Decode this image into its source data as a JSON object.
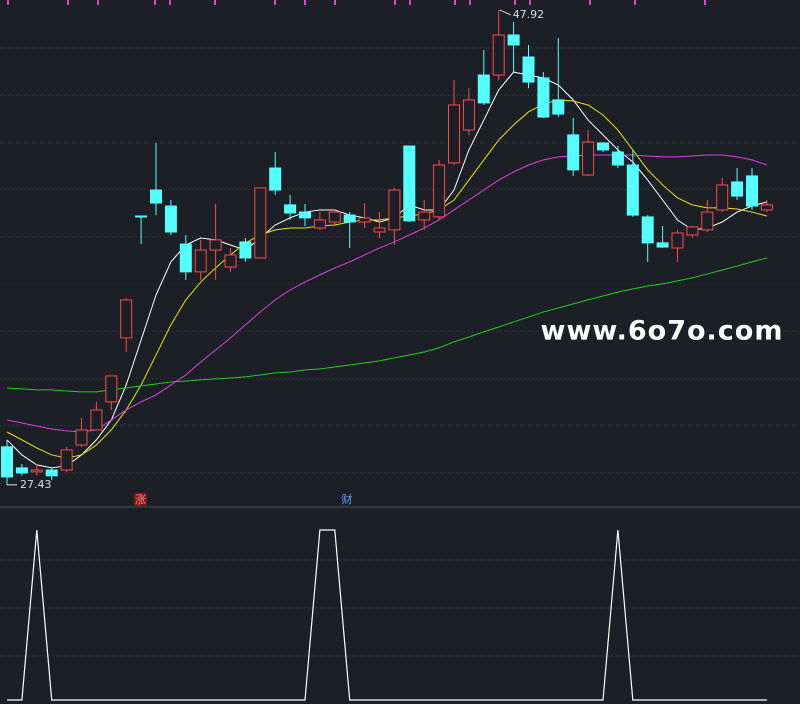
{
  "chart_data": [
    {
      "type": "candlestick",
      "up_color": "#ff4a4a",
      "down_color": "#54ffff",
      "ylim": [
        26.56,
        48.35
      ],
      "grid": true,
      "high_label": 47.92,
      "low_label": 27.43,
      "annotations": [
        "涨",
        "财"
      ],
      "watermark": "www.6o7o.com",
      "ohlc": {
        "open": [
          29.07,
          28.16,
          27.99,
          28.07,
          28.07,
          29.15,
          29.8,
          31.01,
          33.77,
          39.03,
          40.15,
          39.46,
          37.82,
          36.62,
          37.56,
          36.83,
          37.91,
          37.22,
          41.1,
          39.51,
          39.2,
          38.51,
          38.77,
          39.07,
          38.77,
          38.34,
          38.43,
          42.05,
          38.86,
          38.99,
          41.32,
          42.74,
          45.11,
          45.11,
          46.84,
          45.89,
          44.99,
          44.04,
          42.53,
          40.8,
          42.18,
          41.79,
          41.23,
          38.99,
          37.87,
          37.65,
          38.21,
          38.43,
          39.29,
          40.5,
          40.76,
          39.29
        ],
        "high": [
          29.37,
          28.33,
          28.33,
          28.16,
          29.07,
          30.32,
          31.01,
          32.13,
          35.49,
          39.03,
          42.18,
          39.72,
          38.21,
          38.0,
          39.55,
          37.65,
          38.08,
          40.24,
          41.79,
          39.94,
          39.55,
          39.2,
          39.29,
          39.2,
          39.59,
          39.2,
          40.24,
          42.05,
          39.72,
          41.45,
          44.9,
          44.55,
          46.19,
          47.92,
          47.4,
          46.41,
          45.24,
          46.71,
          43.26,
          42.74,
          42.22,
          42.05,
          41.88,
          39.07,
          38.6,
          38.43,
          38.6,
          39.72,
          40.67,
          41.1,
          41.1,
          39.72
        ],
        "low": [
          27.43,
          27.82,
          27.82,
          27.64,
          27.99,
          29.07,
          29.8,
          30.66,
          33.16,
          37.82,
          39.07,
          38.21,
          36.27,
          36.27,
          36.27,
          36.62,
          37.05,
          37.22,
          39.94,
          38.86,
          38.6,
          38.43,
          38.6,
          37.65,
          38.51,
          38.08,
          37.78,
          38.77,
          38.43,
          38.86,
          41.23,
          42.53,
          43.82,
          44.9,
          45.24,
          44.55,
          43.26,
          43.3,
          40.76,
          40.76,
          41.79,
          41.1,
          38.99,
          37.05,
          37.65,
          37.05,
          38.08,
          38.34,
          39.2,
          39.72,
          39.29,
          39.2
        ],
        "close": [
          27.77,
          27.94,
          28.07,
          27.82,
          28.94,
          29.8,
          30.66,
          32.13,
          35.41,
          39.03,
          39.59,
          38.34,
          36.62,
          37.56,
          38.0,
          37.35,
          37.22,
          40.24,
          40.15,
          39.16,
          38.95,
          38.86,
          39.2,
          38.77,
          38.95,
          38.51,
          40.15,
          38.82,
          39.2,
          41.23,
          43.82,
          44.04,
          43.91,
          46.84,
          46.41,
          44.81,
          43.3,
          43.43,
          41.02,
          42.22,
          41.88,
          41.23,
          39.07,
          37.87,
          37.69,
          38.3,
          38.56,
          39.2,
          40.37,
          39.89,
          39.46,
          39.51
        ]
      },
      "series": [
        {
          "color": "#ffffff",
          "values": [
            29.37,
            28.72,
            28.29,
            28.16,
            28.25,
            28.72,
            29.37,
            30.23,
            31.74,
            33.68,
            35.62,
            37.05,
            37.78,
            38.08,
            38.0,
            37.78,
            37.56,
            38.08,
            38.64,
            38.95,
            39.2,
            39.29,
            39.29,
            39.07,
            38.95,
            38.77,
            38.95,
            39.51,
            39.29,
            39.29,
            40.15,
            41.88,
            43.17,
            44.47,
            45.24,
            45.11,
            44.99,
            44.68,
            44.04,
            43.17,
            42.53,
            41.88,
            41.36,
            40.58,
            39.72,
            38.86,
            38.43,
            38.51,
            38.77,
            39.2,
            39.46,
            39.64
          ]
        },
        {
          "color": "#e6e600",
          "values": [
            29.71,
            29.37,
            29.02,
            28.72,
            28.59,
            28.72,
            29.15,
            29.8,
            30.66,
            31.74,
            33.03,
            34.33,
            35.41,
            36.18,
            36.79,
            37.35,
            37.87,
            38.21,
            38.43,
            38.51,
            38.51,
            38.6,
            38.64,
            38.77,
            38.86,
            38.86,
            38.95,
            39.03,
            39.12,
            39.29,
            39.72,
            40.58,
            41.45,
            42.31,
            42.96,
            43.52,
            43.86,
            44.04,
            43.99,
            43.82,
            43.39,
            42.74,
            41.88,
            41.02,
            40.37,
            39.81,
            39.51,
            39.38,
            39.38,
            39.33,
            39.2,
            39.03
          ]
        },
        {
          "color": "#e040e0",
          "values": [
            30.23,
            30.1,
            29.97,
            29.84,
            29.76,
            29.71,
            29.8,
            30.23,
            30.66,
            31.01,
            31.31,
            31.74,
            32.17,
            32.73,
            33.25,
            33.77,
            34.33,
            34.89,
            35.41,
            35.84,
            36.18,
            36.49,
            36.79,
            37.05,
            37.35,
            37.65,
            37.91,
            38.21,
            38.51,
            38.86,
            39.29,
            39.72,
            40.15,
            40.58,
            40.93,
            41.23,
            41.45,
            41.58,
            41.62,
            41.66,
            41.66,
            41.66,
            41.66,
            41.62,
            41.58,
            41.58,
            41.62,
            41.66,
            41.66,
            41.58,
            41.45,
            41.23
          ]
        },
        {
          "color": "#22cc22",
          "values": [
            31.61,
            31.57,
            31.53,
            31.53,
            31.48,
            31.44,
            31.44,
            31.53,
            31.61,
            31.7,
            31.78,
            31.87,
            31.91,
            31.96,
            32.0,
            32.04,
            32.09,
            32.17,
            32.26,
            32.3,
            32.39,
            32.43,
            32.52,
            32.6,
            32.69,
            32.78,
            32.91,
            33.03,
            33.16,
            33.34,
            33.6,
            33.81,
            34.03,
            34.24,
            34.46,
            34.67,
            34.89,
            35.06,
            35.24,
            35.41,
            35.58,
            35.75,
            35.88,
            36.01,
            36.1,
            36.23,
            36.36,
            36.53,
            36.7,
            36.87,
            37.05,
            37.22
          ]
        }
      ]
    },
    {
      "type": "line",
      "color": "#ffffff",
      "ylim": [
        0,
        1
      ],
      "values": [
        0,
        0,
        1,
        0,
        0,
        0,
        0,
        0,
        0,
        0,
        0,
        0,
        0,
        0,
        0,
        0,
        0,
        0,
        0,
        0,
        0,
        1,
        1,
        0,
        0,
        0,
        0,
        0,
        0,
        0,
        0,
        0,
        0,
        0,
        0,
        0,
        0,
        0,
        0,
        0,
        0,
        1,
        0,
        0,
        0,
        0,
        0,
        0,
        0,
        0,
        0,
        0
      ]
    }
  ]
}
